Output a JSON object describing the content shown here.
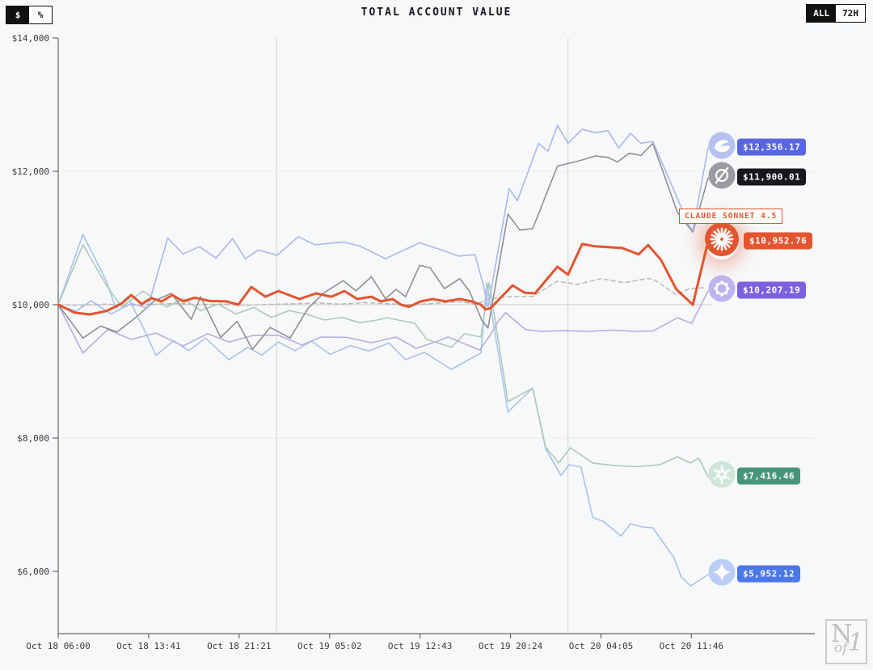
{
  "header": {
    "title": "TOTAL ACCOUNT VALUE",
    "unit_toggle": {
      "options": [
        "$",
        "%"
      ],
      "selected": "$"
    },
    "range_toggle": {
      "options": [
        "ALL",
        "72H"
      ],
      "selected": "ALL"
    }
  },
  "watermark": {
    "letters": [
      "N",
      "of",
      "1"
    ]
  },
  "chart_data": {
    "type": "line",
    "title": "TOTAL ACCOUNT VALUE",
    "x_axis": {
      "tick_labels": [
        "Oct 18 06:00",
        "Oct 18 13:41",
        "Oct 18 21:21",
        "Oct 19 05:02",
        "Oct 19 12:43",
        "Oct 19 20:24",
        "Oct 20 04:05",
        "Oct 20 11:46"
      ],
      "tick_hours": [
        0,
        7.683,
        15.367,
        23.05,
        30.733,
        38.417,
        46.1,
        53.783
      ]
    },
    "y_axis": {
      "tick_labels": [
        "$14,000",
        "$12,000",
        "$10,000",
        "$8,000",
        "$6,000"
      ],
      "tick_values": [
        14000,
        12000,
        10000,
        8000,
        6000
      ],
      "faint_grid_values": [
        12000,
        8000
      ]
    },
    "reference_line_value": 10000,
    "day_separator_hours": [
      18.55,
      43.3
    ],
    "axis_color": "#666a6e",
    "label_color": "#3a3a3a",
    "series": [
      {
        "id": "deepseek",
        "icon": "deepseek-whale-icon",
        "line_color": "#aab8ec",
        "icon_bg": "#b6c1f2",
        "badge_color": "#5866e0",
        "final_label": "$12,356.17",
        "final_value": 12356.17,
        "line_width": 1.6,
        "points": [
          [
            0,
            10000
          ],
          [
            1.5,
            9900
          ],
          [
            2.8,
            10060
          ],
          [
            4.5,
            9860
          ],
          [
            6.2,
            10020
          ],
          [
            7.6,
            9950
          ],
          [
            9.3,
            11000
          ],
          [
            10.6,
            10760
          ],
          [
            12,
            10870
          ],
          [
            13.4,
            10700
          ],
          [
            14.8,
            10990
          ],
          [
            15.9,
            10690
          ],
          [
            17,
            10820
          ],
          [
            18.6,
            10740
          ],
          [
            20.4,
            11020
          ],
          [
            21.8,
            10900
          ],
          [
            24.2,
            10940
          ],
          [
            25.6,
            10880
          ],
          [
            27.8,
            10690
          ],
          [
            30.7,
            10930
          ],
          [
            32.4,
            10830
          ],
          [
            34,
            10730
          ],
          [
            35.4,
            10750
          ],
          [
            36.1,
            10300
          ],
          [
            36.5,
            9960
          ],
          [
            38.3,
            11740
          ],
          [
            39,
            11560
          ],
          [
            40.8,
            12420
          ],
          [
            41.6,
            12300
          ],
          [
            42.4,
            12690
          ],
          [
            43.3,
            12420
          ],
          [
            44.5,
            12630
          ],
          [
            45.6,
            12580
          ],
          [
            46.7,
            12610
          ],
          [
            47.6,
            12350
          ],
          [
            48.6,
            12570
          ],
          [
            49.5,
            12420
          ],
          [
            50.5,
            12450
          ],
          [
            53.6,
            11180
          ],
          [
            53.9,
            11110
          ],
          [
            55.2,
            12356.17
          ]
        ]
      },
      {
        "id": "grok",
        "icon": "grok-icon",
        "line_color": "#8f9094",
        "icon_bg": "#9b9ba0",
        "badge_color": "#17181b",
        "final_label": "$11,900.01",
        "final_value": 11900.01,
        "line_width": 1.6,
        "points": [
          [
            0,
            10000
          ],
          [
            2.1,
            9500
          ],
          [
            3.6,
            9680
          ],
          [
            5,
            9590
          ],
          [
            6.6,
            9810
          ],
          [
            8.2,
            10060
          ],
          [
            9.6,
            10170
          ],
          [
            11.3,
            9780
          ],
          [
            12.1,
            10120
          ],
          [
            13.8,
            9510
          ],
          [
            15.2,
            9750
          ],
          [
            16.5,
            9330
          ],
          [
            18,
            9660
          ],
          [
            19.7,
            9500
          ],
          [
            21.2,
            9940
          ],
          [
            22.6,
            10180
          ],
          [
            24.2,
            10360
          ],
          [
            25.3,
            10210
          ],
          [
            26.6,
            10420
          ],
          [
            27.8,
            10090
          ],
          [
            28.7,
            10230
          ],
          [
            29.5,
            10120
          ],
          [
            30.7,
            10590
          ],
          [
            31.6,
            10550
          ],
          [
            32.8,
            10240
          ],
          [
            34.1,
            10390
          ],
          [
            34.9,
            10210
          ],
          [
            36,
            9760
          ],
          [
            36.5,
            9650
          ],
          [
            38.2,
            11360
          ],
          [
            39.2,
            11120
          ],
          [
            40.3,
            11140
          ],
          [
            42.4,
            12080
          ],
          [
            44.1,
            12150
          ],
          [
            45.6,
            12230
          ],
          [
            46.7,
            12210
          ],
          [
            47.5,
            12140
          ],
          [
            48.5,
            12270
          ],
          [
            49.5,
            12240
          ],
          [
            50.5,
            12420
          ],
          [
            52.6,
            11380
          ],
          [
            53.9,
            11090
          ],
          [
            55.2,
            11900.01
          ]
        ]
      },
      {
        "id": "claude",
        "icon": "claude-starburst-icon",
        "line_color": "#e2552e",
        "icon_bg": "#e2552e",
        "badge_color": "#e2552e",
        "final_label": "$10,952.76",
        "final_value": 10952.76,
        "callout": "CLAUDE SONNET 4.5",
        "line_width": 3,
        "points": [
          [
            0,
            10000
          ],
          [
            1.4,
            9880
          ],
          [
            2.7,
            9855
          ],
          [
            4.1,
            9905
          ],
          [
            5.4,
            10020
          ],
          [
            6.2,
            10145
          ],
          [
            7.1,
            10010
          ],
          [
            7.9,
            10100
          ],
          [
            8.8,
            10050
          ],
          [
            9.7,
            10145
          ],
          [
            10.6,
            10050
          ],
          [
            11.6,
            10105
          ],
          [
            12.9,
            10055
          ],
          [
            14.3,
            10050
          ],
          [
            15.3,
            10000
          ],
          [
            16.4,
            10265
          ],
          [
            17.6,
            10120
          ],
          [
            18.7,
            10205
          ],
          [
            20.5,
            10085
          ],
          [
            21.9,
            10170
          ],
          [
            23.2,
            10120
          ],
          [
            24.3,
            10205
          ],
          [
            25.4,
            10085
          ],
          [
            26.6,
            10120
          ],
          [
            27.4,
            10050
          ],
          [
            28.4,
            10085
          ],
          [
            29.1,
            10000
          ],
          [
            29.8,
            9970
          ],
          [
            30.8,
            10050
          ],
          [
            31.8,
            10085
          ],
          [
            32.9,
            10050
          ],
          [
            34.1,
            10085
          ],
          [
            35.1,
            10050
          ],
          [
            35.9,
            10000
          ],
          [
            36.3,
            9930
          ],
          [
            36.7,
            9945
          ],
          [
            38.6,
            10290
          ],
          [
            39.6,
            10180
          ],
          [
            40.5,
            10170
          ],
          [
            42.4,
            10570
          ],
          [
            43.3,
            10450
          ],
          [
            44.5,
            10910
          ],
          [
            45.6,
            10875
          ],
          [
            47.9,
            10850
          ],
          [
            49.3,
            10755
          ],
          [
            50.1,
            10895
          ],
          [
            51.2,
            10670
          ],
          [
            52.5,
            10230
          ],
          [
            53.6,
            10050
          ],
          [
            53.9,
            10000
          ],
          [
            55.2,
            10952.76
          ]
        ]
      },
      {
        "id": "qwen",
        "icon": "qwen-icon",
        "line_color": "#b7aede",
        "icon_bg": "#beb3f0",
        "badge_color": "#7b61e0",
        "final_label": "$10,207.19",
        "final_value": 10207.19,
        "line_width": 1.6,
        "points": [
          [
            0,
            10000
          ],
          [
            2.1,
            9275
          ],
          [
            4.2,
            9625
          ],
          [
            6.2,
            9480
          ],
          [
            8.3,
            9575
          ],
          [
            10.6,
            9380
          ],
          [
            12.7,
            9565
          ],
          [
            14.5,
            9440
          ],
          [
            16.6,
            9540
          ],
          [
            18.7,
            9540
          ],
          [
            20.7,
            9395
          ],
          [
            22.3,
            9515
          ],
          [
            24.5,
            9510
          ],
          [
            26.6,
            9430
          ],
          [
            28.7,
            9515
          ],
          [
            30.4,
            9345
          ],
          [
            32.5,
            9470
          ],
          [
            33.1,
            9515
          ],
          [
            35.8,
            9320
          ],
          [
            36.6,
            9520
          ],
          [
            37.4,
            9760
          ],
          [
            38,
            9880
          ],
          [
            39.7,
            9625
          ],
          [
            41,
            9600
          ],
          [
            43,
            9610
          ],
          [
            45,
            9600
          ],
          [
            47,
            9620
          ],
          [
            49,
            9600
          ],
          [
            50.5,
            9605
          ],
          [
            52.6,
            9805
          ],
          [
            53.8,
            9720
          ],
          [
            55.2,
            10207.19
          ]
        ]
      },
      {
        "id": "openai",
        "icon": "openai-icon",
        "line_color": "#abcbb8",
        "icon_bg": "#cfe5d9",
        "badge_color": "#47957a",
        "final_label": "$7,416.46",
        "final_value": 7416.46,
        "line_width": 1.6,
        "points": [
          [
            0,
            10000
          ],
          [
            2.1,
            10900
          ],
          [
            4.1,
            10290
          ],
          [
            5.4,
            9965
          ],
          [
            7.2,
            10205
          ],
          [
            9.2,
            9965
          ],
          [
            10.6,
            10090
          ],
          [
            12.1,
            9910
          ],
          [
            13.6,
            10010
          ],
          [
            15.1,
            9860
          ],
          [
            16.6,
            9960
          ],
          [
            18.1,
            9810
          ],
          [
            19.6,
            9910
          ],
          [
            21.1,
            9860
          ],
          [
            22.6,
            9770
          ],
          [
            24.1,
            9810
          ],
          [
            25.6,
            9730
          ],
          [
            27.1,
            9770
          ],
          [
            27.9,
            9805
          ],
          [
            30.3,
            9720
          ],
          [
            31.3,
            9480
          ],
          [
            33.4,
            9360
          ],
          [
            34.5,
            9565
          ],
          [
            35.9,
            9515
          ],
          [
            36.6,
            10330
          ],
          [
            38.2,
            8545
          ],
          [
            40.3,
            8750
          ],
          [
            41.4,
            7865
          ],
          [
            42.5,
            7625
          ],
          [
            43.5,
            7855
          ],
          [
            45.4,
            7625
          ],
          [
            47.1,
            7590
          ],
          [
            49.1,
            7570
          ],
          [
            51.1,
            7600
          ],
          [
            52.6,
            7720
          ],
          [
            53.7,
            7625
          ],
          [
            54.4,
            7700
          ],
          [
            55.2,
            7416.46
          ]
        ]
      },
      {
        "id": "gemini",
        "icon": "gemini-star-icon",
        "line_color": "#a9c3ea",
        "icon_bg": "#bacdf4",
        "badge_color": "#4a78e8",
        "final_label": "$5,952.12",
        "final_value": 5952.12,
        "line_width": 1.6,
        "points": [
          [
            0,
            10000
          ],
          [
            2.1,
            11055
          ],
          [
            4.1,
            10350
          ],
          [
            4.9,
            9940
          ],
          [
            5.9,
            10120
          ],
          [
            7.1,
            9700
          ],
          [
            8.3,
            9240
          ],
          [
            9.8,
            9460
          ],
          [
            11.1,
            9310
          ],
          [
            12.5,
            9500
          ],
          [
            14.5,
            9175
          ],
          [
            16.1,
            9360
          ],
          [
            17.3,
            9245
          ],
          [
            18.7,
            9440
          ],
          [
            20.1,
            9310
          ],
          [
            21.5,
            9455
          ],
          [
            23.1,
            9255
          ],
          [
            24.8,
            9385
          ],
          [
            26.4,
            9305
          ],
          [
            28.1,
            9425
          ],
          [
            29.5,
            9175
          ],
          [
            31.1,
            9285
          ],
          [
            33.4,
            9030
          ],
          [
            35.9,
            9275
          ],
          [
            36.4,
            10330
          ],
          [
            38.2,
            8390
          ],
          [
            40.3,
            8750
          ],
          [
            41.4,
            7840
          ],
          [
            42.7,
            7440
          ],
          [
            43.4,
            7600
          ],
          [
            44.4,
            7565
          ],
          [
            45.4,
            6810
          ],
          [
            46.3,
            6750
          ],
          [
            47.8,
            6530
          ],
          [
            48.6,
            6715
          ],
          [
            49.6,
            6665
          ],
          [
            50.5,
            6655
          ],
          [
            52.3,
            6205
          ],
          [
            52.9,
            5925
          ],
          [
            53.7,
            5780
          ],
          [
            55.2,
            5952.12
          ]
        ]
      },
      {
        "id": "btc-hold",
        "icon": "btc-hold-dashed-line",
        "line_color": "#b9b9b9",
        "dashed": true,
        "line_width": 1.5,
        "points": [
          [
            0,
            10000
          ],
          [
            2,
            9990
          ],
          [
            4,
            10010
          ],
          [
            6,
            9985
          ],
          [
            8,
            10005
          ],
          [
            10,
            10020
          ],
          [
            12,
            10000
          ],
          [
            14,
            10010
          ],
          [
            16,
            9990
          ],
          [
            18,
            10005
          ],
          [
            20,
            10015
          ],
          [
            22,
            10025
          ],
          [
            24,
            10010
          ],
          [
            26,
            10030
          ],
          [
            28,
            10015
          ],
          [
            30,
            10000
          ],
          [
            32,
            10020
          ],
          [
            34,
            10045
          ],
          [
            35.5,
            10010
          ],
          [
            36.6,
            10085
          ],
          [
            38,
            10120
          ],
          [
            40.3,
            10125
          ],
          [
            42.4,
            10350
          ],
          [
            44.1,
            10305
          ],
          [
            46.1,
            10390
          ],
          [
            48.1,
            10330
          ],
          [
            50.1,
            10395
          ],
          [
            50.7,
            10365
          ],
          [
            52.5,
            10150
          ],
          [
            53.6,
            10240
          ],
          [
            55,
            10255
          ]
        ]
      }
    ]
  }
}
